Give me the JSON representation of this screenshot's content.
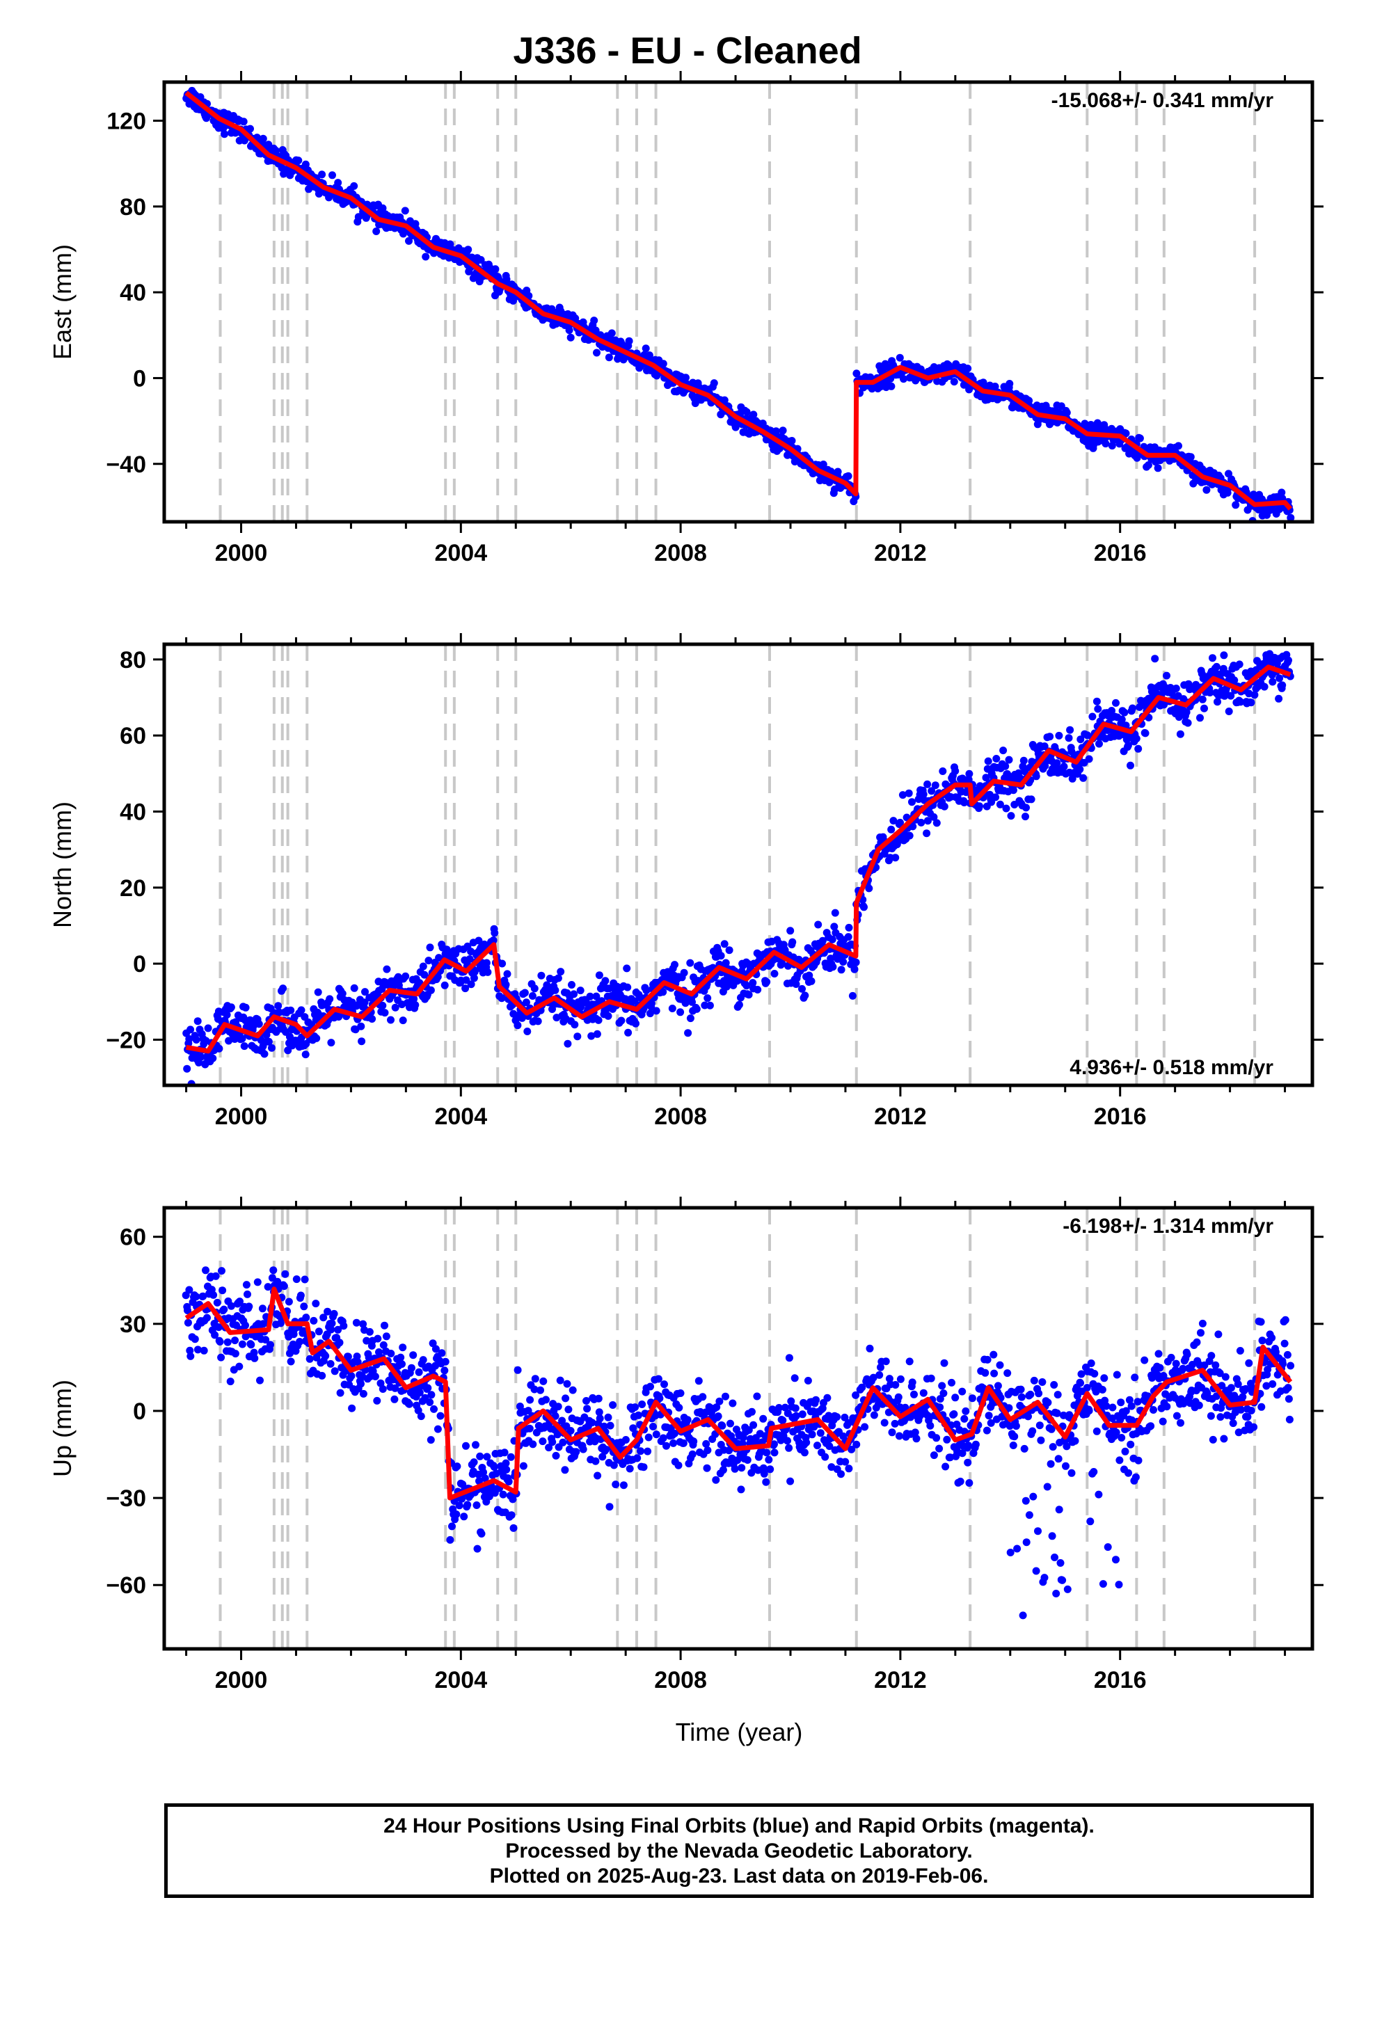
{
  "title": "J336  - EU - Cleaned",
  "xlabel": "Time (year)",
  "footer": {
    "line1": "24 Hour Positions Using Final Orbits (blue) and Rapid Orbits (magenta).",
    "line2": "Processed by the Nevada Geodetic Laboratory.",
    "line3": "Plotted on 2025-Aug-23. Last data on 2019-Feb-06."
  },
  "colors": {
    "points": "#0000ff",
    "model": "#ff0000",
    "steps": "#c8c8c8",
    "frame": "#000000"
  },
  "chart_data": [
    {
      "type": "scatter",
      "ylabel": "East (mm)",
      "rate_label": "-15.068+/- 0.341 mm/yr",
      "rate_position": "top-right",
      "xlim": [
        1998.6,
        2019.5
      ],
      "ylim": [
        -67,
        138
      ],
      "xticks": [
        2000,
        2004,
        2008,
        2012,
        2016
      ],
      "yticks": [
        -40,
        0,
        40,
        80,
        120
      ],
      "ytick_labels": [
        "−40",
        "0",
        "40",
        "80",
        "120"
      ],
      "step_lines": [
        1999.62,
        2000.6,
        2000.75,
        2000.85,
        2001.2,
        2003.72,
        2003.88,
        2004.67,
        2005.0,
        2006.85,
        2007.2,
        2007.55,
        2009.62,
        2011.2,
        2013.27,
        2015.4,
        2016.3,
        2016.8,
        2018.45
      ],
      "model": [
        {
          "x": 1999.0,
          "y": 133
        },
        {
          "x": 1999.6,
          "y": 121
        },
        {
          "x": 2000.0,
          "y": 116
        },
        {
          "x": 2000.5,
          "y": 104
        },
        {
          "x": 2001.0,
          "y": 98
        },
        {
          "x": 2001.5,
          "y": 89
        },
        {
          "x": 2002.0,
          "y": 84
        },
        {
          "x": 2002.5,
          "y": 74
        },
        {
          "x": 2003.0,
          "y": 71
        },
        {
          "x": 2003.5,
          "y": 61
        },
        {
          "x": 2004.0,
          "y": 57
        },
        {
          "x": 2004.67,
          "y": 44
        },
        {
          "x": 2005.0,
          "y": 40
        },
        {
          "x": 2005.5,
          "y": 30
        },
        {
          "x": 2006.0,
          "y": 26
        },
        {
          "x": 2006.5,
          "y": 18
        },
        {
          "x": 2007.0,
          "y": 12
        },
        {
          "x": 2007.5,
          "y": 6
        },
        {
          "x": 2008.0,
          "y": -3
        },
        {
          "x": 2008.5,
          "y": -8
        },
        {
          "x": 2009.0,
          "y": -18
        },
        {
          "x": 2009.5,
          "y": -25
        },
        {
          "x": 2010.0,
          "y": -33
        },
        {
          "x": 2010.5,
          "y": -43
        },
        {
          "x": 2011.0,
          "y": -49
        },
        {
          "x": 2011.19,
          "y": -54
        },
        {
          "x": 2011.2,
          "y": -2
        },
        {
          "x": 2011.5,
          "y": -2
        },
        {
          "x": 2012.0,
          "y": 5
        },
        {
          "x": 2012.5,
          "y": 0
        },
        {
          "x": 2013.0,
          "y": 3
        },
        {
          "x": 2013.5,
          "y": -6
        },
        {
          "x": 2014.0,
          "y": -8
        },
        {
          "x": 2014.5,
          "y": -17
        },
        {
          "x": 2015.0,
          "y": -19
        },
        {
          "x": 2015.4,
          "y": -26
        },
        {
          "x": 2016.0,
          "y": -27
        },
        {
          "x": 2016.5,
          "y": -36
        },
        {
          "x": 2017.0,
          "y": -36
        },
        {
          "x": 2017.5,
          "y": -46
        },
        {
          "x": 2018.0,
          "y": -50
        },
        {
          "x": 2018.45,
          "y": -59
        },
        {
          "x": 2019.0,
          "y": -58
        },
        {
          "x": 2019.1,
          "y": -61
        }
      ],
      "noise": 2.5
    },
    {
      "type": "scatter",
      "ylabel": "North (mm)",
      "rate_label": "4.936+/- 0.518 mm/yr",
      "rate_position": "bottom-right",
      "xlim": [
        1998.6,
        2019.5
      ],
      "ylim": [
        -32,
        84
      ],
      "xticks": [
        2000,
        2004,
        2008,
        2012,
        2016
      ],
      "yticks": [
        -20,
        0,
        20,
        40,
        60,
        80
      ],
      "ytick_labels": [
        "−20",
        "0",
        "20",
        "40",
        "60",
        "80"
      ],
      "step_lines": [
        1999.62,
        2000.6,
        2000.75,
        2000.85,
        2001.2,
        2003.72,
        2003.88,
        2004.67,
        2005.0,
        2006.85,
        2007.2,
        2007.55,
        2009.62,
        2011.2,
        2013.27,
        2015.4,
        2016.3,
        2016.8,
        2018.45
      ],
      "model": [
        {
          "x": 1999.0,
          "y": -22
        },
        {
          "x": 1999.4,
          "y": -23
        },
        {
          "x": 1999.7,
          "y": -16
        },
        {
          "x": 2000.3,
          "y": -19
        },
        {
          "x": 2000.6,
          "y": -14
        },
        {
          "x": 2001.0,
          "y": -16
        },
        {
          "x": 2001.2,
          "y": -19
        },
        {
          "x": 2001.7,
          "y": -12
        },
        {
          "x": 2002.2,
          "y": -14
        },
        {
          "x": 2002.7,
          "y": -7
        },
        {
          "x": 2003.2,
          "y": -8
        },
        {
          "x": 2003.7,
          "y": 1
        },
        {
          "x": 2004.1,
          "y": -2
        },
        {
          "x": 2004.6,
          "y": 5
        },
        {
          "x": 2004.7,
          "y": -6
        },
        {
          "x": 2005.2,
          "y": -13
        },
        {
          "x": 2005.7,
          "y": -9
        },
        {
          "x": 2006.2,
          "y": -14
        },
        {
          "x": 2006.7,
          "y": -10
        },
        {
          "x": 2007.2,
          "y": -12
        },
        {
          "x": 2007.7,
          "y": -5
        },
        {
          "x": 2008.2,
          "y": -8
        },
        {
          "x": 2008.7,
          "y": -1
        },
        {
          "x": 2009.2,
          "y": -4
        },
        {
          "x": 2009.7,
          "y": 3
        },
        {
          "x": 2010.2,
          "y": -1
        },
        {
          "x": 2010.7,
          "y": 5
        },
        {
          "x": 2011.19,
          "y": 2
        },
        {
          "x": 2011.2,
          "y": 16
        },
        {
          "x": 2011.6,
          "y": 30
        },
        {
          "x": 2012.0,
          "y": 35
        },
        {
          "x": 2012.5,
          "y": 42
        },
        {
          "x": 2013.0,
          "y": 47
        },
        {
          "x": 2013.27,
          "y": 47
        },
        {
          "x": 2013.3,
          "y": 42
        },
        {
          "x": 2013.7,
          "y": 48
        },
        {
          "x": 2014.2,
          "y": 47
        },
        {
          "x": 2014.7,
          "y": 56
        },
        {
          "x": 2015.2,
          "y": 53
        },
        {
          "x": 2015.7,
          "y": 63
        },
        {
          "x": 2016.2,
          "y": 61
        },
        {
          "x": 2016.7,
          "y": 70
        },
        {
          "x": 2017.2,
          "y": 68
        },
        {
          "x": 2017.7,
          "y": 75
        },
        {
          "x": 2018.2,
          "y": 72
        },
        {
          "x": 2018.7,
          "y": 78
        },
        {
          "x": 2019.1,
          "y": 76
        }
      ],
      "noise": 3.2
    },
    {
      "type": "scatter",
      "ylabel": "Up (mm)",
      "rate_label": "-6.198+/- 1.314 mm/yr",
      "rate_position": "top-right",
      "xlim": [
        1998.6,
        2019.5
      ],
      "ylim": [
        -82,
        70
      ],
      "xticks": [
        2000,
        2004,
        2008,
        2012,
        2016
      ],
      "xtick_labels": [
        "2000",
        "2004",
        "2008",
        "2012",
        "2016"
      ],
      "yticks": [
        -60,
        -30,
        0,
        30,
        60
      ],
      "ytick_labels": [
        "−60",
        "−30",
        "0",
        "30",
        "60"
      ],
      "step_lines": [
        1999.62,
        2000.6,
        2000.75,
        2000.85,
        2001.2,
        2003.72,
        2003.88,
        2004.67,
        2005.0,
        2006.85,
        2007.2,
        2007.55,
        2009.62,
        2011.2,
        2013.27,
        2015.4,
        2016.3,
        2016.8,
        2018.45
      ],
      "model": [
        {
          "x": 1999.0,
          "y": 32
        },
        {
          "x": 1999.4,
          "y": 37
        },
        {
          "x": 1999.8,
          "y": 27
        },
        {
          "x": 2000.5,
          "y": 28
        },
        {
          "x": 2000.6,
          "y": 42
        },
        {
          "x": 2000.85,
          "y": 30
        },
        {
          "x": 2001.2,
          "y": 30
        },
        {
          "x": 2001.3,
          "y": 20
        },
        {
          "x": 2001.6,
          "y": 24
        },
        {
          "x": 2002.0,
          "y": 14
        },
        {
          "x": 2002.6,
          "y": 18
        },
        {
          "x": 2003.0,
          "y": 8
        },
        {
          "x": 2003.5,
          "y": 12
        },
        {
          "x": 2003.72,
          "y": 10
        },
        {
          "x": 2003.8,
          "y": -30
        },
        {
          "x": 2004.2,
          "y": -27
        },
        {
          "x": 2004.6,
          "y": -24
        },
        {
          "x": 2005.0,
          "y": -28
        },
        {
          "x": 2005.05,
          "y": -6
        },
        {
          "x": 2005.5,
          "y": 0
        },
        {
          "x": 2006.0,
          "y": -10
        },
        {
          "x": 2006.5,
          "y": -6
        },
        {
          "x": 2006.9,
          "y": -16
        },
        {
          "x": 2007.2,
          "y": -10
        },
        {
          "x": 2007.55,
          "y": 3
        },
        {
          "x": 2008.0,
          "y": -7
        },
        {
          "x": 2008.5,
          "y": -3
        },
        {
          "x": 2009.0,
          "y": -13
        },
        {
          "x": 2009.6,
          "y": -12
        },
        {
          "x": 2009.65,
          "y": -6
        },
        {
          "x": 2010.5,
          "y": -3
        },
        {
          "x": 2011.0,
          "y": -13
        },
        {
          "x": 2011.5,
          "y": 8
        },
        {
          "x": 2012.0,
          "y": -2
        },
        {
          "x": 2012.5,
          "y": 4
        },
        {
          "x": 2013.0,
          "y": -10
        },
        {
          "x": 2013.3,
          "y": -8
        },
        {
          "x": 2013.6,
          "y": 8
        },
        {
          "x": 2014.0,
          "y": -3
        },
        {
          "x": 2014.5,
          "y": 3
        },
        {
          "x": 2015.0,
          "y": -9
        },
        {
          "x": 2015.4,
          "y": 6
        },
        {
          "x": 2015.8,
          "y": -5
        },
        {
          "x": 2016.3,
          "y": -5
        },
        {
          "x": 2016.6,
          "y": 5
        },
        {
          "x": 2016.85,
          "y": 10
        },
        {
          "x": 2017.5,
          "y": 14
        },
        {
          "x": 2018.0,
          "y": 2
        },
        {
          "x": 2018.45,
          "y": 3
        },
        {
          "x": 2018.6,
          "y": 22
        },
        {
          "x": 2019.1,
          "y": 10
        }
      ],
      "noise": 7
    }
  ]
}
